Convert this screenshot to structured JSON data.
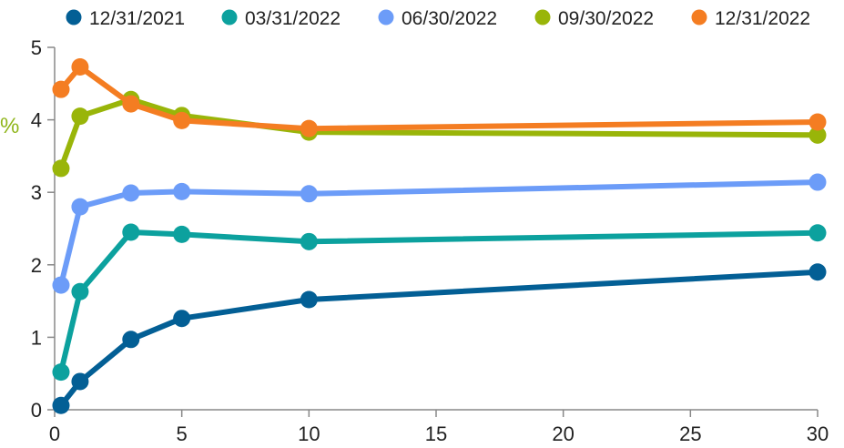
{
  "chart_data": {
    "type": "line",
    "title": "",
    "xlabel": "",
    "ylabel": "%",
    "ylabel_color": "#8fb51a",
    "xlim": [
      0,
      30
    ],
    "ylim": [
      0,
      5
    ],
    "xticks": [
      0,
      5,
      10,
      15,
      20,
      25,
      30
    ],
    "yticks": [
      0,
      1,
      2,
      3,
      4,
      5
    ],
    "grid": false,
    "legend": "top",
    "x": [
      0.25,
      1,
      3,
      5,
      10,
      30
    ],
    "series": [
      {
        "name": "12/31/2021",
        "color": "#035f95",
        "values": [
          0.06,
          0.39,
          0.97,
          1.26,
          1.52,
          1.9
        ]
      },
      {
        "name": "03/31/2022",
        "color": "#0ca19e",
        "values": [
          0.52,
          1.63,
          2.45,
          2.42,
          2.32,
          2.44
        ]
      },
      {
        "name": "06/30/2022",
        "color": "#6c9cf8",
        "values": [
          1.72,
          2.8,
          2.99,
          3.01,
          2.98,
          3.14
        ]
      },
      {
        "name": "09/30/2022",
        "color": "#99b509",
        "values": [
          3.33,
          4.05,
          4.28,
          4.06,
          3.83,
          3.79
        ]
      },
      {
        "name": "12/31/2022",
        "color": "#f47d22",
        "values": [
          4.42,
          4.73,
          4.22,
          3.99,
          3.88,
          3.97
        ]
      }
    ]
  }
}
